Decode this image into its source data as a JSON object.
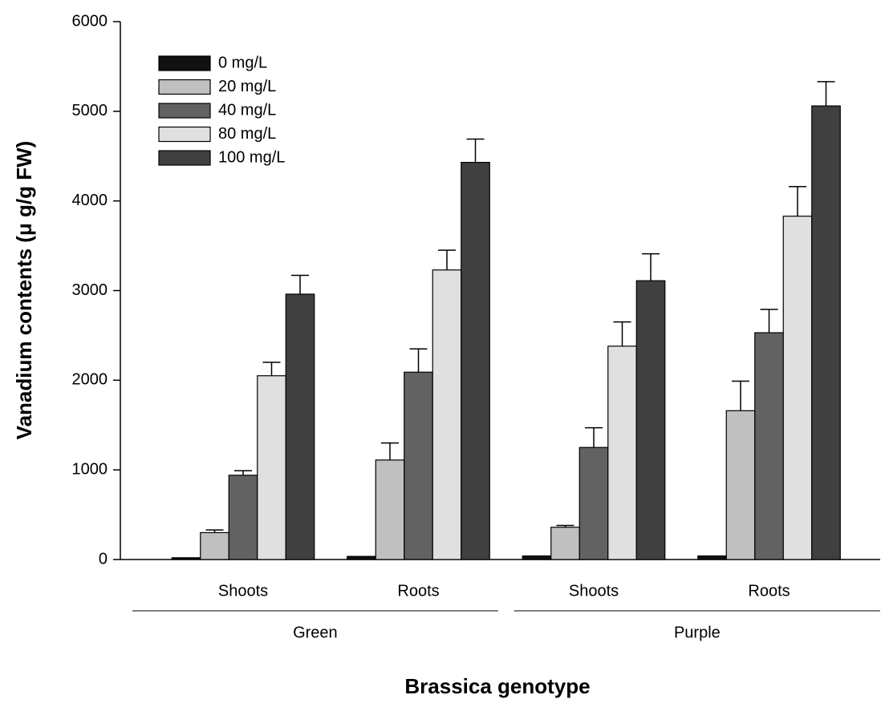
{
  "chart_data": {
    "type": "bar",
    "ylabel": "Vanadium contents (μ g/g FW)",
    "xlabel": "Brassica genotype",
    "categories": [
      "Shoots",
      "Roots",
      "Shoots",
      "Roots"
    ],
    "groups": [
      "Green",
      "Purple"
    ],
    "ylim": [
      0,
      6000
    ],
    "yticks": [
      0,
      1000,
      2000,
      3000,
      4000,
      5000,
      6000
    ],
    "legend": "upper left",
    "series": [
      {
        "name": "0 mg/L",
        "color": "#111111",
        "values": [
          20,
          35,
          40,
          40
        ],
        "errors": [
          0,
          0,
          0,
          0
        ]
      },
      {
        "name": "20 mg/L",
        "color": "#c0c0c0",
        "values": [
          300,
          1110,
          360,
          1660
        ],
        "errors": [
          30,
          190,
          20,
          330
        ]
      },
      {
        "name": "40 mg/L",
        "color": "#626262",
        "values": [
          940,
          2090,
          1250,
          2530
        ],
        "errors": [
          50,
          260,
          220,
          260
        ]
      },
      {
        "name": "80 mg/L",
        "color": "#e0e0e0",
        "values": [
          2050,
          3230,
          2380,
          3830
        ],
        "errors": [
          150,
          220,
          270,
          330
        ]
      },
      {
        "name": "100 mg/L",
        "color": "#404040",
        "values": [
          2960,
          4430,
          3110,
          5060
        ],
        "errors": [
          210,
          260,
          300,
          270
        ]
      }
    ]
  }
}
